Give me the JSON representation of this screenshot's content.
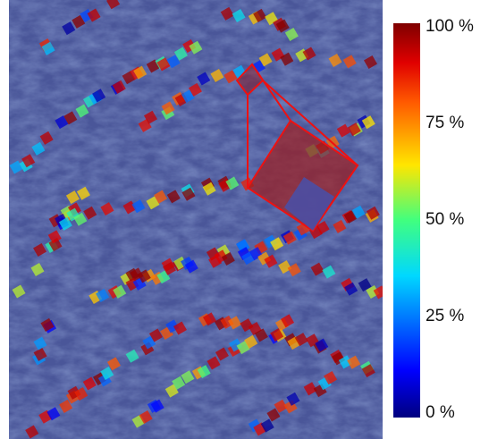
{
  "colorbar": {
    "lim": [
      0,
      100
    ],
    "ticks": [
      {
        "value": 0,
        "label": "0 %"
      },
      {
        "value": 25,
        "label": "25 %"
      },
      {
        "value": 50,
        "label": "50 %"
      },
      {
        "value": 75,
        "label": "75 %"
      },
      {
        "value": 100,
        "label": "100 %"
      }
    ]
  }
}
